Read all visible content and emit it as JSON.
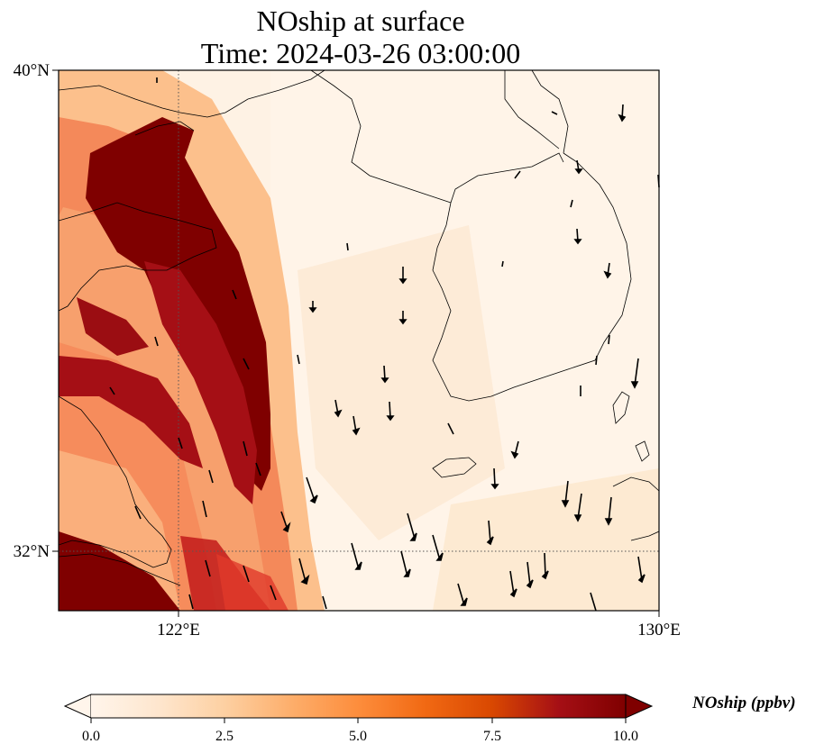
{
  "title": {
    "line1": "NOship at surface",
    "line2": "Time: 2024-03-26 03:00:00"
  },
  "map": {
    "extent": {
      "lon_min": 120,
      "lon_max": 130,
      "lat_min": 31,
      "lat_max": 40
    },
    "gridlines": {
      "lons": [
        122
      ],
      "lats": [
        32
      ],
      "style": "dotted"
    },
    "lat_ticks": [
      {
        "value": 40,
        "label": "40°N"
      },
      {
        "value": 32,
        "label": "32°N"
      }
    ],
    "lon_ticks": [
      {
        "value": 122,
        "label": "122°E"
      },
      {
        "value": 130,
        "label": "130°E"
      }
    ]
  },
  "colorbar": {
    "label": "NOship (ppbv)",
    "min": 0.0,
    "max": 10.0,
    "extend": "both",
    "colormap": [
      "#fff5eb",
      "#fee6ce",
      "#fdd0a2",
      "#fdae6b",
      "#fd8d3c",
      "#f16913",
      "#d94801",
      "#a50f15",
      "#7f0000"
    ],
    "ticks": [
      {
        "value": 0.0,
        "label": "0.0"
      },
      {
        "value": 2.5,
        "label": "2.5"
      },
      {
        "value": 5.0,
        "label": "5.0"
      },
      {
        "value": 7.5,
        "label": "7.5"
      },
      {
        "value": 10.0,
        "label": "10.0"
      }
    ]
  },
  "colors": {
    "land_outline": "#000000",
    "gridline": "#555555",
    "wind_arrow": "#000000"
  }
}
